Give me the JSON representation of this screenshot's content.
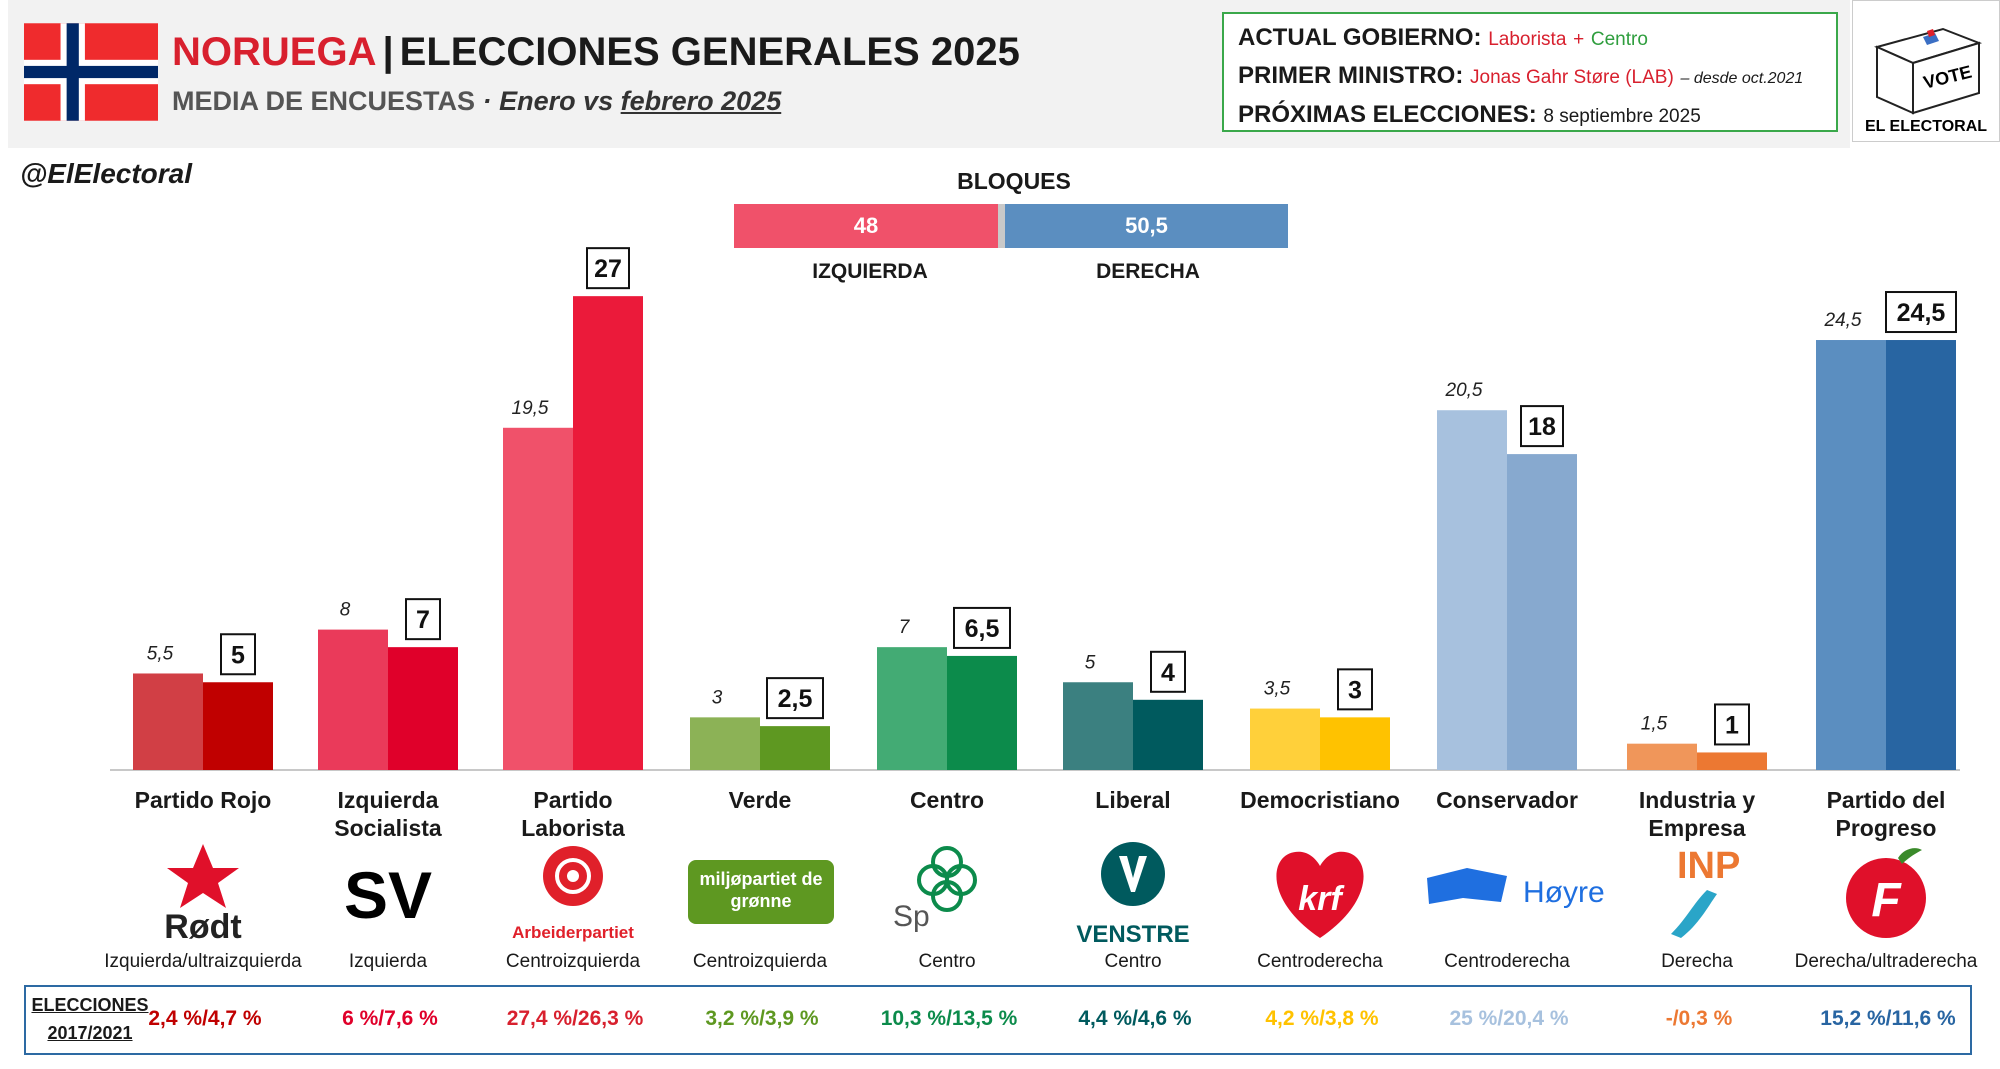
{
  "header": {
    "country": "NORUEGA",
    "separator": "|",
    "title": "ELECCIONES GENERALES 2025",
    "subtitle_main": "MEDIA DE ENCUESTAS",
    "subtitle_dot": "·",
    "subtitle_from": "Enero vs",
    "subtitle_to": "febrero 2025"
  },
  "government": {
    "gov_label": "ACTUAL GOBIERNO:",
    "gov_party1": "Laborista",
    "gov_plus": "+",
    "gov_party2": "Centro",
    "pm_label": "PRIMER MINISTRO:",
    "pm_name": "Jonas Gahr Støre (LAB)",
    "pm_note": "– desde oct.2021",
    "next_label": "PRÓXIMAS ELECCIONES:",
    "next_date": "8 septiembre 2025"
  },
  "brand": {
    "vote_text": "VOTE",
    "name": "EL ELECTORAL"
  },
  "handle": "@ElElectoral",
  "blocs": {
    "title": "BLOQUES",
    "left_value": "48",
    "right_value": "50,5",
    "left_label": "IZQUIERDA",
    "right_label": "DERECHA",
    "left_color": "#f0516a",
    "right_color": "#5b8ec0",
    "gap_color": "#c9c9c9"
  },
  "chart_data": {
    "type": "bar",
    "categories": [
      "Partido Rojo",
      "Izquierda Socialista",
      "Partido Laborista",
      "Verde",
      "Centro",
      "Liberal",
      "Democristiano",
      "Conservador",
      "Industria y Empresa",
      "Partido del Progreso"
    ],
    "series": [
      {
        "values": [
          5.5,
          8,
          19.5,
          3,
          7,
          5,
          3.5,
          20.5,
          1.5,
          24.5
        ],
        "labels": [
          "5,5",
          "8",
          "19,5",
          "3",
          "7",
          "5",
          "3,5",
          "20,5",
          "1,5",
          "24,5"
        ]
      },
      {
        "values": [
          5,
          7,
          27,
          2.5,
          6.5,
          4,
          3,
          18,
          1,
          24.5
        ],
        "labels": [
          "5",
          "7",
          "27",
          "2,5",
          "6,5",
          "4",
          "3",
          "18",
          "1",
          "24,5"
        ]
      }
    ],
    "colors_jan": [
      "#d13f45",
      "#ea3a5a",
      "#f0516a",
      "#8cb256",
      "#43ab74",
      "#3b8080",
      "#ffd03a",
      "#a7c1de",
      "#f0965a",
      "#5b8ec0"
    ],
    "colors_feb": [
      "#c00000",
      "#e0002a",
      "#eb1a3a",
      "#5e9821",
      "#0c8b4b",
      "#005a5e",
      "#ffc200",
      "#87a9cf",
      "#ec7832",
      "#2865a2"
    ],
    "ylim": [
      0,
      27
    ]
  },
  "parties": [
    {
      "name_lines": [
        "Partido Rojo"
      ],
      "logo_text": "Rødt",
      "ideology": "Izquierda/ultraizquierda",
      "result": "2,4 %/4,7 %",
      "result_color": "#c00000"
    },
    {
      "name_lines": [
        "Izquierda",
        "Socialista"
      ],
      "logo_text": "SV",
      "ideology": "Izquierda",
      "result": "6 %/7,6 %",
      "result_color": "#e0002a"
    },
    {
      "name_lines": [
        "Partido",
        "Laborista"
      ],
      "logo_text": "Arbeiderpartiet",
      "ideology": "Centroizquierda",
      "result": "27,4 %/26,3 %",
      "result_color": "#d8202e"
    },
    {
      "name_lines": [
        "Verde"
      ],
      "logo_text": "miljøpartiet de grønne",
      "ideology": "Centroizquierda",
      "result": "3,2 %/3,9 %",
      "result_color": "#5e9821"
    },
    {
      "name_lines": [
        "Centro"
      ],
      "logo_text": "Sp",
      "ideology": "Centro",
      "result": "10,3 %/13,5 %",
      "result_color": "#0c8b4b"
    },
    {
      "name_lines": [
        "Liberal"
      ],
      "logo_text": "VENSTRE",
      "ideology": "Centro",
      "result": "4,4 %/4,6 %",
      "result_color": "#005a5e"
    },
    {
      "name_lines": [
        "Democristiano"
      ],
      "logo_text": "krf",
      "ideology": "Centroderecha",
      "result": "4,2 %/3,8 %",
      "result_color": "#ffc200"
    },
    {
      "name_lines": [
        "Conservador"
      ],
      "logo_text": "Høyre",
      "ideology": "Centroderecha",
      "result": "25 %/20,4 %",
      "result_color": "#a7c1de"
    },
    {
      "name_lines": [
        "Industria y",
        "Empresa"
      ],
      "logo_text": "INP",
      "ideology": "Derecha",
      "result": "-/0,3 %",
      "result_color": "#ec7832"
    },
    {
      "name_lines": [
        "Partido del",
        "Progreso"
      ],
      "logo_text": "F",
      "ideology": "Derecha/ultraderecha",
      "result": "15,2 %/11,6 %",
      "result_color": "#2865a2"
    }
  ],
  "elections_label": [
    "ELECCIONES",
    "2017/2021"
  ]
}
